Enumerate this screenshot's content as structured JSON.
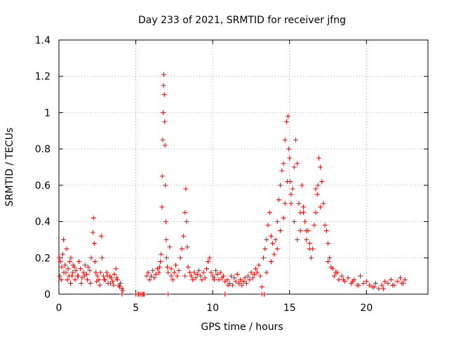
{
  "chart_data": {
    "type": "scatter",
    "title": "Day 233 of 2021, SRMTID for receiver jfng",
    "xlabel": "GPS time / hours",
    "ylabel": "SRMTID / TECUs",
    "xlim": [
      0,
      24
    ],
    "ylim": [
      0,
      1.4
    ],
    "xticks": [
      0,
      5,
      10,
      15,
      20
    ],
    "xtick_labels": [
      "0",
      "5",
      "10",
      "15",
      "20"
    ],
    "yticks": [
      0,
      0.2,
      0.4,
      0.6,
      0.8,
      1,
      1.2,
      1.4
    ],
    "ytick_labels": [
      "0",
      "0.2",
      "0.4",
      "0.6",
      "0.8",
      "1",
      "1.2",
      "1.4"
    ],
    "grid": true,
    "marker": "+",
    "color": "#ff0000",
    "series": [
      {
        "name": "SRMTID",
        "x": [
          0.02,
          0.1,
          0.18,
          0.25,
          0.32,
          0.4,
          0.5,
          0.6,
          0.7,
          0.78,
          0.85,
          0.92,
          1.0,
          1.1,
          1.2,
          1.3,
          1.4,
          1.5,
          1.6,
          1.7,
          1.8,
          1.9,
          2.0,
          2.1,
          2.2,
          2.25,
          2.3,
          2.35,
          2.4,
          2.5,
          2.6,
          2.7,
          2.75,
          2.8,
          2.9,
          3.0,
          3.1,
          3.2,
          3.3,
          3.4,
          3.5,
          3.6,
          3.7,
          3.8,
          3.9,
          4.0,
          4.1,
          4.15,
          0.05,
          0.15,
          0.3,
          0.45,
          0.55,
          0.65,
          0.75,
          0.9,
          1.05,
          1.25,
          1.45,
          1.65,
          1.85,
          2.05,
          2.45,
          2.65,
          2.95,
          3.15,
          3.35,
          3.55,
          3.75,
          3.95,
          5.0,
          5.2,
          5.4,
          5.55,
          5.7,
          5.8,
          5.9,
          6.0,
          6.1,
          6.2,
          6.3,
          6.4,
          6.5,
          6.55,
          6.6,
          6.65,
          6.7,
          6.72,
          6.75,
          6.78,
          6.8,
          6.82,
          6.85,
          6.88,
          6.9,
          6.92,
          6.95,
          6.98,
          7.0,
          7.05,
          7.1,
          7.2,
          7.3,
          7.4,
          7.5,
          7.6,
          7.7,
          7.8,
          7.9,
          8.0,
          8.1,
          8.2,
          8.25,
          8.3,
          8.35,
          8.4,
          8.5,
          8.6,
          8.7,
          8.8,
          8.9,
          9.0,
          9.1,
          9.2,
          9.3,
          9.4,
          9.5,
          9.6,
          9.7,
          9.8,
          9.9,
          10.0,
          10.1,
          10.2,
          10.3,
          10.4,
          10.5,
          10.6,
          10.7,
          10.8,
          10.95,
          11.1,
          11.2,
          11.3,
          11.4,
          11.5,
          11.6,
          11.7,
          11.8,
          11.9,
          12.0,
          12.1,
          12.2,
          12.3,
          12.4,
          12.5,
          12.6,
          12.7,
          12.8,
          12.9,
          13.0,
          13.1,
          13.3,
          13.4,
          13.5,
          13.6,
          13.7,
          13.8,
          13.9,
          14.0,
          14.1,
          14.2,
          14.3,
          14.4,
          14.5,
          14.6,
          14.7,
          14.8,
          14.9,
          14.95,
          15.0,
          15.05,
          15.1,
          15.2,
          15.3,
          15.4,
          15.5,
          15.6,
          15.7,
          15.8,
          15.9,
          16.0,
          16.1,
          16.2,
          16.3,
          16.4,
          16.5,
          16.6,
          16.7,
          16.8,
          16.85,
          16.9,
          17.0,
          17.1,
          17.2,
          17.3,
          17.4,
          17.5,
          17.6,
          17.7,
          17.8,
          17.9,
          18.0,
          18.2,
          18.4,
          18.6,
          18.8,
          19.0,
          19.2,
          19.4,
          19.6,
          19.8,
          20.0,
          20.2,
          20.4,
          20.6,
          20.8,
          21.0,
          21.2,
          21.4,
          21.6,
          21.8,
          22.0,
          22.2,
          22.4,
          22.5,
          7.3,
          8.2,
          10.1,
          11.0,
          12.0,
          13.2,
          13.5,
          13.8,
          14.2,
          14.4,
          14.6,
          14.7,
          14.85,
          15.1,
          15.3,
          15.5,
          15.7,
          15.9,
          16.1,
          16.3,
          16.7,
          17.0,
          17.5,
          18.1,
          18.5,
          19.1,
          19.5,
          20.5,
          21.1,
          21.7,
          22.3,
          4.1,
          5.0,
          5.15,
          5.3,
          5.5,
          7.1,
          10.8,
          13.2,
          13.35
        ],
        "y": [
          0.2,
          0.18,
          0.15,
          0.22,
          0.12,
          0.16,
          0.25,
          0.14,
          0.18,
          0.2,
          0.1,
          0.16,
          0.15,
          0.13,
          0.1,
          0.18,
          0.14,
          0.09,
          0.12,
          0.16,
          0.11,
          0.15,
          0.13,
          0.2,
          0.34,
          0.42,
          0.28,
          0.18,
          0.12,
          0.1,
          0.08,
          0.12,
          0.32,
          0.2,
          0.1,
          0.08,
          0.12,
          0.06,
          0.1,
          0.09,
          0.07,
          0.11,
          0.14,
          0.08,
          0.05,
          0.06,
          0.03,
          0.02,
          0.1,
          0.08,
          0.3,
          0.12,
          0.08,
          0.1,
          0.06,
          0.12,
          0.08,
          0.1,
          0.06,
          0.1,
          0.08,
          0.06,
          0.07,
          0.05,
          0.08,
          0.1,
          0.06,
          0.05,
          0.09,
          0.04,
          0.0,
          0.0,
          0.0,
          0.0,
          0.1,
          0.12,
          0.08,
          0.1,
          0.13,
          0.09,
          0.11,
          0.14,
          0.12,
          0.15,
          0.18,
          0.22,
          0.48,
          0.65,
          0.85,
          1.0,
          1.15,
          1.21,
          1.1,
          0.95,
          0.82,
          0.6,
          0.4,
          0.3,
          0.2,
          0.15,
          0.12,
          0.26,
          0.1,
          0.08,
          0.12,
          0.16,
          0.1,
          0.13,
          0.2,
          0.25,
          0.32,
          0.45,
          0.58,
          0.4,
          0.26,
          0.15,
          0.12,
          0.1,
          0.08,
          0.12,
          0.09,
          0.11,
          0.13,
          0.1,
          0.08,
          0.12,
          0.09,
          0.14,
          0.18,
          0.2,
          0.12,
          0.1,
          0.09,
          0.13,
          0.11,
          0.08,
          0.12,
          0.09,
          0.1,
          0.07,
          0.08,
          0.06,
          0.1,
          0.05,
          0.09,
          0.07,
          0.11,
          0.06,
          0.08,
          0.05,
          0.07,
          0.09,
          0.06,
          0.1,
          0.08,
          0.12,
          0.09,
          0.11,
          0.14,
          0.12,
          0.16,
          0.1,
          0.2,
          0.25,
          0.3,
          0.38,
          0.45,
          0.32,
          0.28,
          0.22,
          0.3,
          0.4,
          0.52,
          0.6,
          0.68,
          0.72,
          0.85,
          0.95,
          0.98,
          0.8,
          0.75,
          0.62,
          0.55,
          0.58,
          0.7,
          0.85,
          0.72,
          0.5,
          0.45,
          0.6,
          0.48,
          0.4,
          0.3,
          0.35,
          0.28,
          0.2,
          0.25,
          0.38,
          0.45,
          0.55,
          0.6,
          0.75,
          0.7,
          0.62,
          0.5,
          0.38,
          0.35,
          0.28,
          0.2,
          0.15,
          0.14,
          0.1,
          0.12,
          0.08,
          0.1,
          0.07,
          0.09,
          0.06,
          0.08,
          0.05,
          0.1,
          0.06,
          0.07,
          0.05,
          0.04,
          0.06,
          0.03,
          0.05,
          0.07,
          0.06,
          0.08,
          0.05,
          0.07,
          0.09,
          0.06,
          0.08,
          0.14,
          0.1,
          0.08,
          0.05,
          0.07,
          0.04,
          0.12,
          0.18,
          0.25,
          0.35,
          0.42,
          0.5,
          0.62,
          0.5,
          0.4,
          0.3,
          0.35,
          0.45,
          0.35,
          0.25,
          0.58,
          0.48,
          0.18,
          0.12,
          0.08,
          0.07,
          0.05,
          0.04,
          0.03,
          0.05,
          0.06,
          0.0,
          0.0,
          0.0,
          0.0,
          0.0,
          0.0,
          0.0,
          0.0,
          0.0
        ]
      }
    ]
  }
}
